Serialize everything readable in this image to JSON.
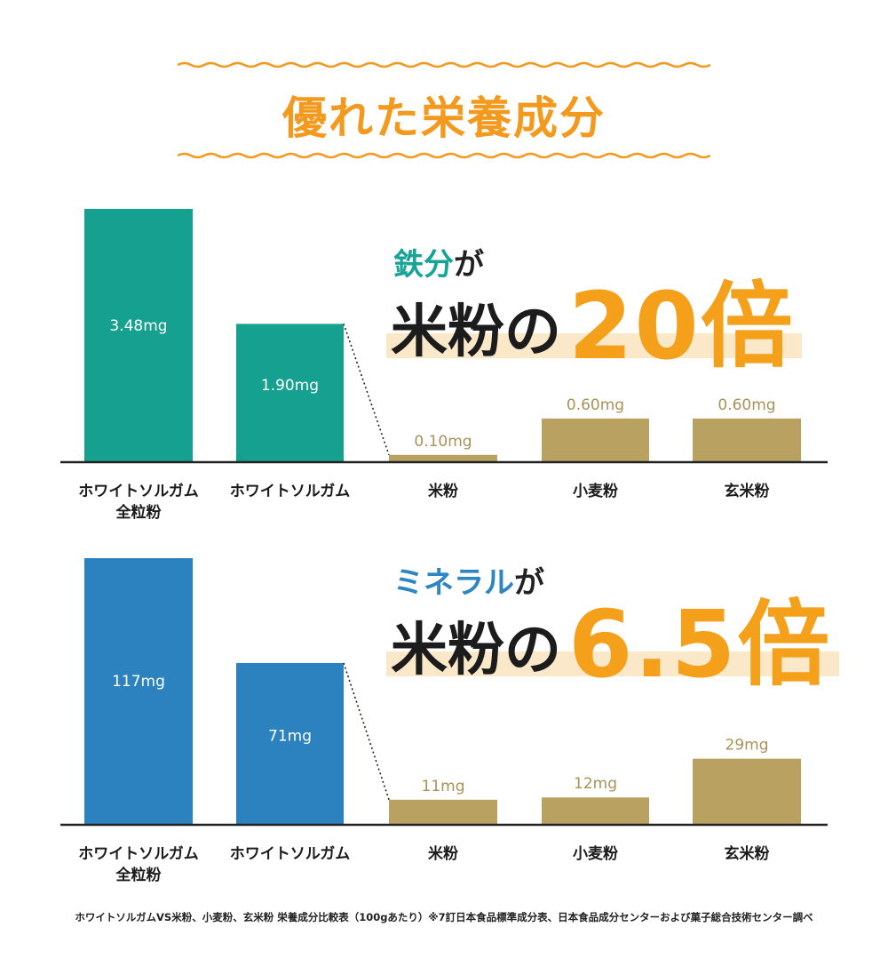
{
  "page_title": "優れた栄養成分",
  "colors": {
    "title": "#f39a1e",
    "teal": "#16a08f",
    "blue": "#2c82bf",
    "gold": "#b9a261",
    "gold_text": "#a89258",
    "highlight": "#fbe8c8",
    "accent_big": "#f5a01a"
  },
  "headlines": [
    {
      "sub_accent": "鉄分",
      "sub_rest": "が",
      "main": "米粉の",
      "big": "20倍",
      "accent_color": "#17a396"
    },
    {
      "sub_accent": "ミネラル",
      "sub_rest": "が",
      "main": "米粉の",
      "big": "6.5倍",
      "accent_color": "#2d86c4"
    }
  ],
  "chart_data": [
    {
      "type": "bar",
      "title": "",
      "unit": "mg",
      "categories": [
        "ホワイトソルガム\n全粒粉",
        "ホワイトソルガム",
        "米粉",
        "小麦粉",
        "玄米粉"
      ],
      "values": [
        3.48,
        1.9,
        0.1,
        0.6,
        0.6
      ],
      "labels": [
        "3.48mg",
        "1.90mg",
        "0.10mg",
        "0.60mg",
        "0.60mg"
      ],
      "bar_colors": [
        "#16a08f",
        "#16a08f",
        "#b9a261",
        "#b9a261",
        "#b9a261"
      ],
      "ylim": [
        0,
        3.48
      ]
    },
    {
      "type": "bar",
      "title": "",
      "unit": "mg",
      "categories": [
        "ホワイトソルガム\n全粒粉",
        "ホワイトソルガム",
        "米粉",
        "小麦粉",
        "玄米粉"
      ],
      "values": [
        117,
        71,
        11,
        12,
        29
      ],
      "labels": [
        "117mg",
        "71mg",
        "11mg",
        "12mg",
        "29mg"
      ],
      "bar_colors": [
        "#2c82bf",
        "#2c82bf",
        "#b9a261",
        "#b9a261",
        "#b9a261"
      ],
      "ylim": [
        0,
        117
      ]
    }
  ],
  "footnote": "ホワイトソルガムVS米粉、小麦粉、玄米粉 栄養成分比較表（100gあたり）※7訂日本食品標準成分表、日本食品成分センターおよび菓子総合技術センター調べ"
}
